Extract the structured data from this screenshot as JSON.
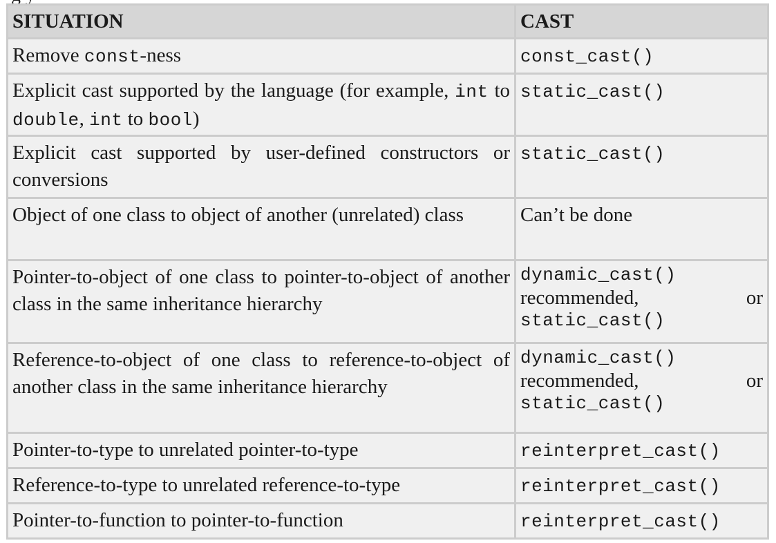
{
  "caption_fragment": "g                                           y",
  "headers": {
    "situation": "SITUATION",
    "cast": "CAST"
  },
  "rows": [
    {
      "situation": [
        "Remove ",
        {
          "code": "const"
        },
        "-ness"
      ],
      "cast": {
        "code": "const_cast()"
      }
    },
    {
      "situation": [
        "Explicit cast supported by the language (for example, ",
        {
          "code": "int"
        },
        " to ",
        {
          "code": "double"
        },
        ", ",
        {
          "code": "int"
        },
        " to ",
        {
          "code": "bool"
        },
        ")"
      ],
      "cast": {
        "code": "static_cast()"
      }
    },
    {
      "situation": [
        "Explicit cast supported by user-defined constructors or conversions"
      ],
      "cast": {
        "code": "static_cast()"
      }
    },
    {
      "situation": [
        "Object of one class to object of another (unrelated) class"
      ],
      "cast": {
        "text": "Can’t be done"
      }
    },
    {
      "situation": [
        "Pointer-to-object of one class to pointer-to-object of another class in the same inheritance hierarchy"
      ],
      "cast": {
        "primary": "dynamic_cast()",
        "middle": "recommended,",
        "or": "or",
        "alt": "static_cast()"
      }
    },
    {
      "situation": [
        "Reference-to-object of one class to reference-to-object of another class in the same inheritance hierarchy"
      ],
      "cast": {
        "primary": "dynamic_cast()",
        "middle": "recommended,",
        "or": "or",
        "alt": "static_cast()"
      }
    },
    {
      "situation": [
        "Pointer-to-type to unrelated pointer-to-type"
      ],
      "cast": {
        "code": "reinterpret_cast()"
      }
    },
    {
      "situation": [
        "Reference-to-type to unrelated reference-to-type"
      ],
      "cast": {
        "code": "reinterpret_cast()"
      }
    },
    {
      "situation": [
        "Pointer-to-function to pointer-to-function"
      ],
      "cast": {
        "code": "reinterpret_cast()"
      }
    }
  ]
}
